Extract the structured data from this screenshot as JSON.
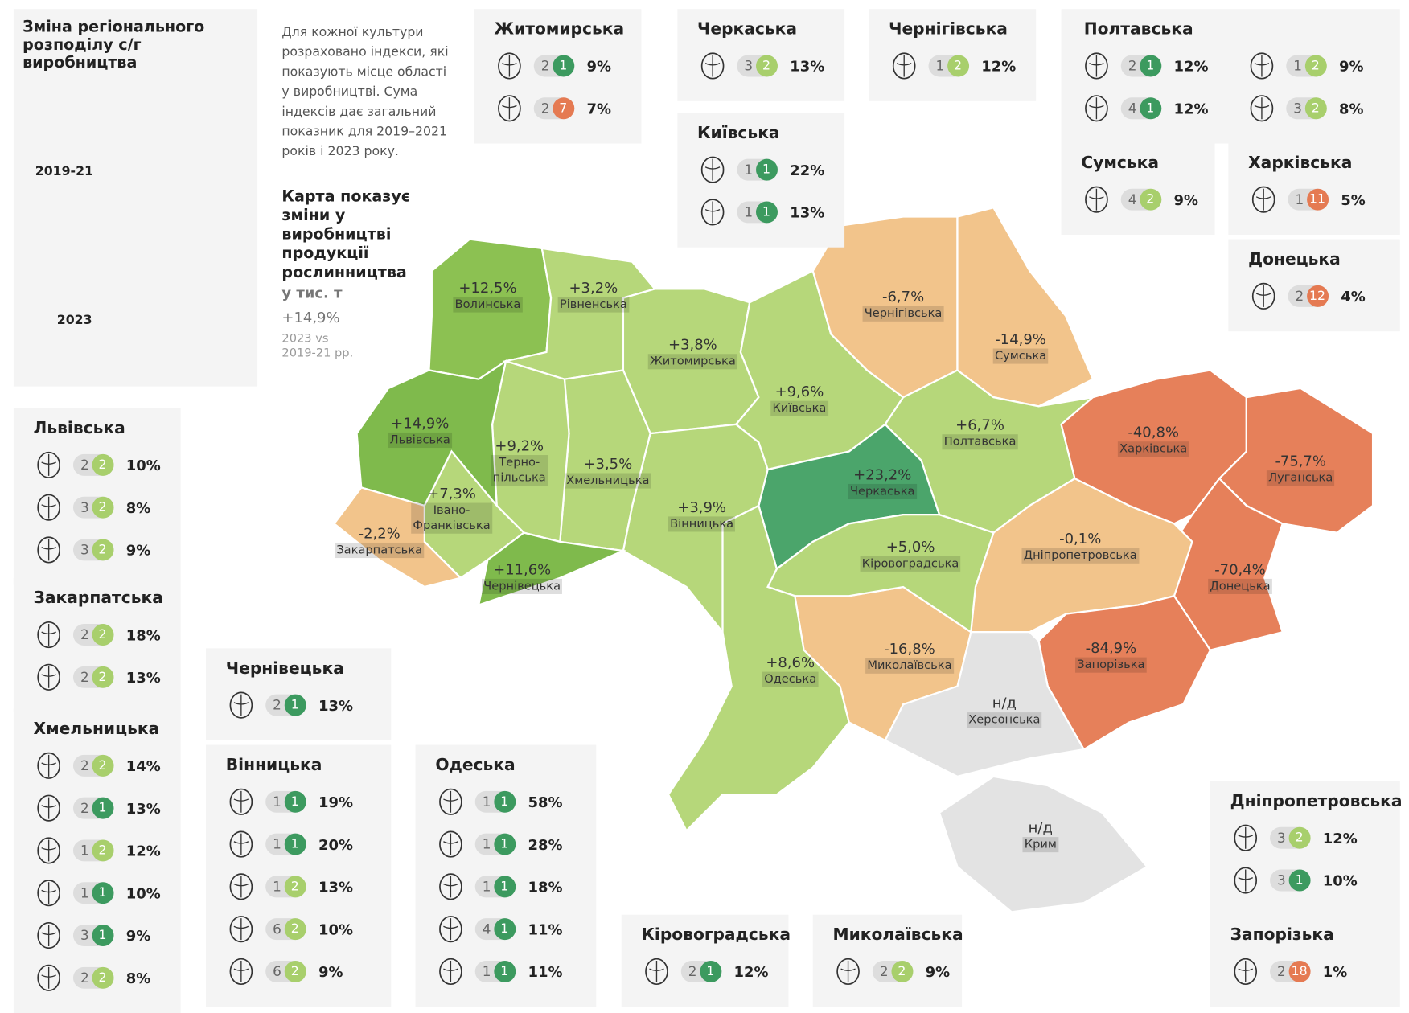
{
  "header": {
    "title": "Зміна регіонального розподілу с/г виробництва",
    "map_labels": [
      "2019-21",
      "2023"
    ]
  },
  "intro": "Для кожної культури розраховано індекси, які показують місце області у виробництві. Сума індексів дає загальний показник для 2019–2021 років і 2023 року.",
  "map_note": {
    "title": "Карта показує зміни у виробництві продукції рослинництва",
    "unit": "у тис. т",
    "total": "+14,9%",
    "comparison": "2023 vs 2019-21 рр."
  },
  "regions": [
    {
      "name": "Волинська",
      "change": "+12,5%",
      "color": "#8cc152"
    },
    {
      "name": "Рівненська",
      "change": "+3,2%",
      "color": "#b6d77a"
    },
    {
      "name": "Житомирська",
      "change": "+3,8%",
      "color": "#b6d77a"
    },
    {
      "name": "Київська",
      "change": "+9,6%",
      "color": "#b6d77a"
    },
    {
      "name": "Чернігівська",
      "change": "-6,7%",
      "color": "#f2c48b"
    },
    {
      "name": "Сумська",
      "change": "-14,9%",
      "color": "#f2c48b"
    },
    {
      "name": "Полтавська",
      "change": "+6,7%",
      "color": "#b6d77a"
    },
    {
      "name": "Черкаська",
      "change": "+23,2%",
      "color": "#4ba56b"
    },
    {
      "name": "Харківська",
      "change": "-40,8%",
      "color": "#e6805a"
    },
    {
      "name": "Луганська",
      "change": "-75,7%",
      "color": "#e6805a"
    },
    {
      "name": "Донецька",
      "change": "-70,4%",
      "color": "#e6805a"
    },
    {
      "name": "Дніпропетровська",
      "change": "-0,1%",
      "color": "#f2c48b"
    },
    {
      "name": "Запорізька",
      "change": "-84,9%",
      "color": "#e6805a"
    },
    {
      "name": "Херсонська",
      "change": "н/д",
      "color": "#e3e3e3"
    },
    {
      "name": "Крим",
      "change": "н/д",
      "color": "#e3e3e3"
    },
    {
      "name": "Миколаївська",
      "change": "-16,8%",
      "color": "#f2c48b"
    },
    {
      "name": "Кіровоградська",
      "change": "+5,0%",
      "color": "#b6d77a"
    },
    {
      "name": "Одеська",
      "change": "+8,6%",
      "color": "#b6d77a"
    },
    {
      "name": "Вінницька",
      "change": "+3,9%",
      "color": "#b6d77a"
    },
    {
      "name": "Хмельницька",
      "change": "+3,5%",
      "color": "#b6d77a"
    },
    {
      "name": "Терно-\nпільська",
      "change": "+9,2%",
      "color": "#b6d77a"
    },
    {
      "name": "Львівська",
      "change": "+14,9%",
      "color": "#7fba4c"
    },
    {
      "name": "Івано-\nФранківська",
      "change": "+7,3%",
      "color": "#b6d77a"
    },
    {
      "name": "Закарпатська",
      "change": "-2,2%",
      "color": "#f2c48b"
    },
    {
      "name": "Чернівецька",
      "change": "+11,6%",
      "color": "#7fba4c"
    }
  ],
  "cards": [
    {
      "title": "Житомирська",
      "items": [
        {
          "rank_2019": 2,
          "rank_2023": 1,
          "share": "9%"
        },
        {
          "rank_2019": 2,
          "rank_2023": 7,
          "share": "7%"
        }
      ]
    },
    {
      "title": "Черкаська",
      "items": [
        {
          "rank_2019": 3,
          "rank_2023": 2,
          "share": "13%"
        }
      ]
    },
    {
      "title": "Чернігівська",
      "items": [
        {
          "rank_2019": 1,
          "rank_2023": 2,
          "share": "12%"
        }
      ]
    },
    {
      "title": "Полтавська",
      "items": [
        {
          "rank_2019": 2,
          "rank_2023": 1,
          "share": "12%"
        },
        {
          "rank_2019": 4,
          "rank_2023": 1,
          "share": "12%"
        },
        {
          "rank_2019": 1,
          "rank_2023": 2,
          "share": "9%"
        },
        {
          "rank_2019": 3,
          "rank_2023": 2,
          "share": "8%"
        }
      ]
    },
    {
      "title": "Київська",
      "items": [
        {
          "rank_2019": 1,
          "rank_2023": 1,
          "share": "22%"
        },
        {
          "rank_2019": 1,
          "rank_2023": 1,
          "share": "13%"
        }
      ]
    },
    {
      "title": "Сумська",
      "items": [
        {
          "rank_2019": 4,
          "rank_2023": 2,
          "share": "9%"
        }
      ]
    },
    {
      "title": "Харківська",
      "items": [
        {
          "rank_2019": 1,
          "rank_2023": 11,
          "share": "5%"
        }
      ]
    },
    {
      "title": "Донецька",
      "items": [
        {
          "rank_2019": 2,
          "rank_2023": 12,
          "share": "4%"
        }
      ]
    },
    {
      "title": "Львівська",
      "items": [
        {
          "rank_2019": 2,
          "rank_2023": 2,
          "share": "10%"
        },
        {
          "rank_2019": 3,
          "rank_2023": 2,
          "share": "8%"
        },
        {
          "rank_2019": 3,
          "rank_2023": 2,
          "share": "9%"
        }
      ]
    },
    {
      "title": "Закарпатська",
      "items": [
        {
          "rank_2019": 2,
          "rank_2023": 2,
          "share": "18%"
        },
        {
          "rank_2019": 2,
          "rank_2023": 2,
          "share": "13%"
        }
      ]
    },
    {
      "title": "Хмельницька",
      "items": [
        {
          "rank_2019": 2,
          "rank_2023": 2,
          "share": "14%"
        },
        {
          "rank_2019": 2,
          "rank_2023": 1,
          "share": "13%"
        },
        {
          "rank_2019": 1,
          "rank_2023": 2,
          "share": "12%"
        },
        {
          "rank_2019": 1,
          "rank_2023": 1,
          "share": "10%"
        },
        {
          "rank_2019": 3,
          "rank_2023": 1,
          "share": "9%"
        },
        {
          "rank_2019": 2,
          "rank_2023": 2,
          "share": "8%"
        }
      ]
    },
    {
      "title": "Чернівецька",
      "items": [
        {
          "rank_2019": 2,
          "rank_2023": 1,
          "share": "13%"
        }
      ]
    },
    {
      "title": "Вінницька",
      "items": [
        {
          "rank_2019": 1,
          "rank_2023": 1,
          "share": "19%"
        },
        {
          "rank_2019": 1,
          "rank_2023": 1,
          "share": "20%"
        },
        {
          "rank_2019": 1,
          "rank_2023": 2,
          "share": "13%"
        },
        {
          "rank_2019": 6,
          "rank_2023": 2,
          "share": "10%"
        },
        {
          "rank_2019": 6,
          "rank_2023": 2,
          "share": "9%"
        }
      ]
    },
    {
      "title": "Одеська",
      "items": [
        {
          "rank_2019": 1,
          "rank_2023": 1,
          "share": "58%"
        },
        {
          "rank_2019": 1,
          "rank_2023": 1,
          "share": "28%"
        },
        {
          "rank_2019": 1,
          "rank_2023": 1,
          "share": "18%"
        },
        {
          "rank_2019": 4,
          "rank_2023": 1,
          "share": "11%"
        },
        {
          "rank_2019": 1,
          "rank_2023": 1,
          "share": "11%"
        }
      ]
    },
    {
      "title": "Кіровоградська",
      "items": [
        {
          "rank_2019": 2,
          "rank_2023": 1,
          "share": "12%"
        }
      ]
    },
    {
      "title": "Миколаївська",
      "items": [
        {
          "rank_2019": 2,
          "rank_2023": 2,
          "share": "9%"
        }
      ]
    },
    {
      "title": "Дніпропетровська",
      "items": [
        {
          "rank_2019": 3,
          "rank_2023": 2,
          "share": "12%"
        },
        {
          "rank_2019": 3,
          "rank_2023": 1,
          "share": "10%"
        }
      ]
    },
    {
      "title": "Запорізька",
      "items": [
        {
          "rank_2019": 2,
          "rank_2023": 18,
          "share": "1%"
        }
      ]
    }
  ]
}
